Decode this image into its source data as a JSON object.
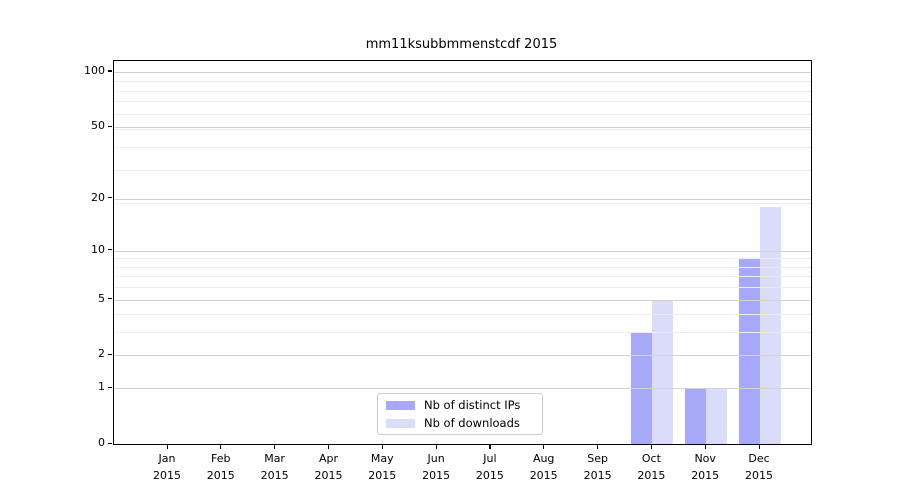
{
  "chart_data": {
    "type": "bar",
    "title": "mm11ksubbmmenstcdf 2015",
    "categories": [
      "Jan",
      "Feb",
      "Mar",
      "Apr",
      "May",
      "Jun",
      "Jul",
      "Aug",
      "Sep",
      "Oct",
      "Nov",
      "Dec"
    ],
    "x_tick_year": "2015",
    "series": [
      {
        "name": "Nb of distinct IPs",
        "color": "#a8a8f8",
        "values": [
          0,
          0,
          0,
          0,
          0,
          0,
          0,
          0,
          0,
          3,
          1,
          9
        ]
      },
      {
        "name": "Nb of downloads",
        "color": "#dbdbfa",
        "values": [
          0,
          0,
          0,
          0,
          0,
          0,
          0,
          0,
          0,
          5,
          1,
          18
        ]
      }
    ],
    "y_scale": "log1p",
    "y_ticks": [
      0,
      1,
      2,
      5,
      10,
      20,
      50,
      100
    ],
    "ylim": [
      0,
      114.6
    ],
    "grid": {
      "major_values": [
        1,
        2,
        5,
        10,
        20,
        50,
        100
      ],
      "minor_values": [
        3,
        4,
        6,
        7,
        8,
        9,
        19,
        29,
        39,
        49,
        59,
        69,
        79,
        89
      ],
      "major_color": "#d2d2d2",
      "minor_color": "#ececec"
    },
    "legend_position": "lower center-left"
  }
}
